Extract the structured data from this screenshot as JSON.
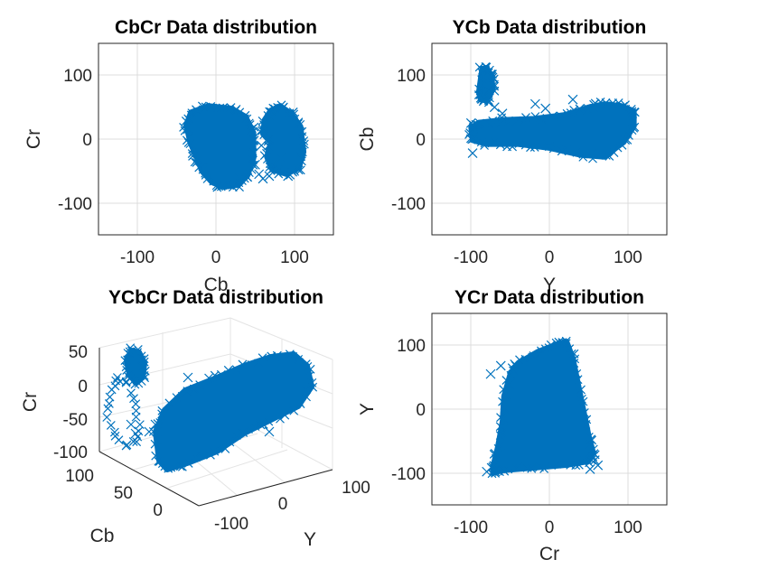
{
  "figure": {
    "background": "#ffffff",
    "marker_color": "#0072BD",
    "marker": "x"
  },
  "chart_data": [
    {
      "type": "scatter",
      "panel": "top-left",
      "title": "CbCr Data distribution",
      "xlabel": "Cb",
      "ylabel": "Cr",
      "xlim": [
        -150,
        150
      ],
      "ylim": [
        -150,
        150
      ],
      "xticks": [
        -100,
        0,
        100
      ],
      "yticks": [
        -100,
        0,
        100
      ],
      "xticklabels": [
        "-100",
        "0",
        "100"
      ],
      "yticklabels": [
        "-100",
        "0",
        "100"
      ],
      "grid": true,
      "regions": [
        [
          [
            -38,
            22
          ],
          [
            -32,
            42
          ],
          [
            -10,
            52
          ],
          [
            20,
            48
          ],
          [
            38,
            35
          ],
          [
            48,
            10
          ],
          [
            48,
            -30
          ],
          [
            40,
            -58
          ],
          [
            28,
            -72
          ],
          [
            10,
            -75
          ],
          [
            -5,
            -68
          ],
          [
            -18,
            -50
          ],
          [
            -25,
            -28
          ],
          [
            -33,
            -5
          ]
        ],
        [
          [
            62,
            30
          ],
          [
            70,
            45
          ],
          [
            82,
            52
          ],
          [
            96,
            40
          ],
          [
            108,
            20
          ],
          [
            112,
            -20
          ],
          [
            106,
            -45
          ],
          [
            90,
            -55
          ],
          [
            72,
            -48
          ],
          [
            65,
            -28
          ],
          [
            70,
            -5
          ],
          [
            60,
            8
          ]
        ]
      ],
      "outliers": [
        [
          55,
          -55
        ],
        [
          60,
          -62
        ],
        [
          68,
          -58
        ],
        [
          78,
          -45
        ],
        [
          92,
          -58
        ],
        [
          100,
          -50
        ],
        [
          50,
          -40
        ],
        [
          45,
          15
        ],
        [
          58,
          -10
        ],
        [
          30,
          -60
        ],
        [
          20,
          -68
        ],
        [
          84,
          -30
        ]
      ]
    },
    {
      "type": "scatter",
      "panel": "top-right",
      "title": "YCb Data distribution",
      "xlabel": "Y",
      "ylabel": "Cb",
      "xlim": [
        -150,
        150
      ],
      "ylim": [
        -150,
        150
      ],
      "xticks": [
        -100,
        0,
        100
      ],
      "yticks": [
        -100,
        0,
        100
      ],
      "xticklabels": [
        "-100",
        "0",
        "100"
      ],
      "yticklabels": [
        "-100",
        "0",
        "100"
      ],
      "grid": true,
      "regions": [
        [
          [
            -100,
            18
          ],
          [
            -90,
            26
          ],
          [
            -60,
            30
          ],
          [
            -20,
            32
          ],
          [
            20,
            38
          ],
          [
            50,
            50
          ],
          [
            70,
            55
          ],
          [
            92,
            52
          ],
          [
            108,
            44
          ],
          [
            108,
            20
          ],
          [
            95,
            -5
          ],
          [
            70,
            -28
          ],
          [
            40,
            -25
          ],
          [
            0,
            -14
          ],
          [
            -40,
            -8
          ],
          [
            -80,
            -8
          ],
          [
            -98,
            -2
          ]
        ],
        [
          [
            -90,
            75
          ],
          [
            -86,
            110
          ],
          [
            -80,
            112
          ],
          [
            -74,
            100
          ],
          [
            -72,
            78
          ],
          [
            -80,
            60
          ],
          [
            -88,
            62
          ]
        ]
      ],
      "outliers": [
        [
          -18,
          55
        ],
        [
          -98,
          -22
        ],
        [
          -100,
          25
        ],
        [
          -70,
          50
        ],
        [
          -60,
          40
        ],
        [
          30,
          62
        ],
        [
          -5,
          48
        ]
      ]
    },
    {
      "type": "scatter3d",
      "panel": "bottom-left",
      "title": "YCbCr Data distribution",
      "xlabel": "Y",
      "ylabel": "Cb",
      "zlabel": "Cr",
      "xticks": [
        -100,
        0,
        100
      ],
      "yticks": [
        0,
        50,
        100
      ],
      "zticks": [
        -100,
        -50,
        0,
        50
      ],
      "xticklabels": [
        "-100",
        "0",
        "100"
      ],
      "yticklabels": [
        "0",
        "50",
        "100"
      ],
      "zticklabels": [
        "-100",
        "-50",
        "0",
        "50"
      ],
      "grid": true,
      "view": "3-D perspective"
    },
    {
      "type": "scatter",
      "panel": "bottom-right",
      "title": "YCr Data distribution",
      "xlabel": "Cr",
      "ylabel": "Y",
      "xlim": [
        -150,
        150
      ],
      "ylim": [
        -150,
        150
      ],
      "xticks": [
        -100,
        0,
        100
      ],
      "yticks": [
        -100,
        0,
        100
      ],
      "xticklabels": [
        "-100",
        "0",
        "100"
      ],
      "yticklabels": [
        "-100",
        "0",
        "100"
      ],
      "grid": true,
      "regions": [
        [
          [
            -72,
            -100
          ],
          [
            -60,
            -96
          ],
          [
            -20,
            -92
          ],
          [
            20,
            -88
          ],
          [
            50,
            -82
          ],
          [
            56,
            -68
          ],
          [
            50,
            -40
          ],
          [
            40,
            20
          ],
          [
            30,
            80
          ],
          [
            22,
            106
          ],
          [
            10,
            102
          ],
          [
            -15,
            90
          ],
          [
            -40,
            72
          ],
          [
            -50,
            55
          ],
          [
            -58,
            20
          ],
          [
            -60,
            -20
          ],
          [
            -66,
            -60
          ],
          [
            -72,
            -90
          ]
        ]
      ],
      "outliers": [
        [
          -75,
          55
        ],
        [
          -62,
          68
        ],
        [
          -48,
          50
        ],
        [
          58,
          -80
        ],
        [
          62,
          -88
        ],
        [
          52,
          -94
        ],
        [
          -70,
          -95
        ],
        [
          -80,
          -98
        ]
      ]
    }
  ]
}
